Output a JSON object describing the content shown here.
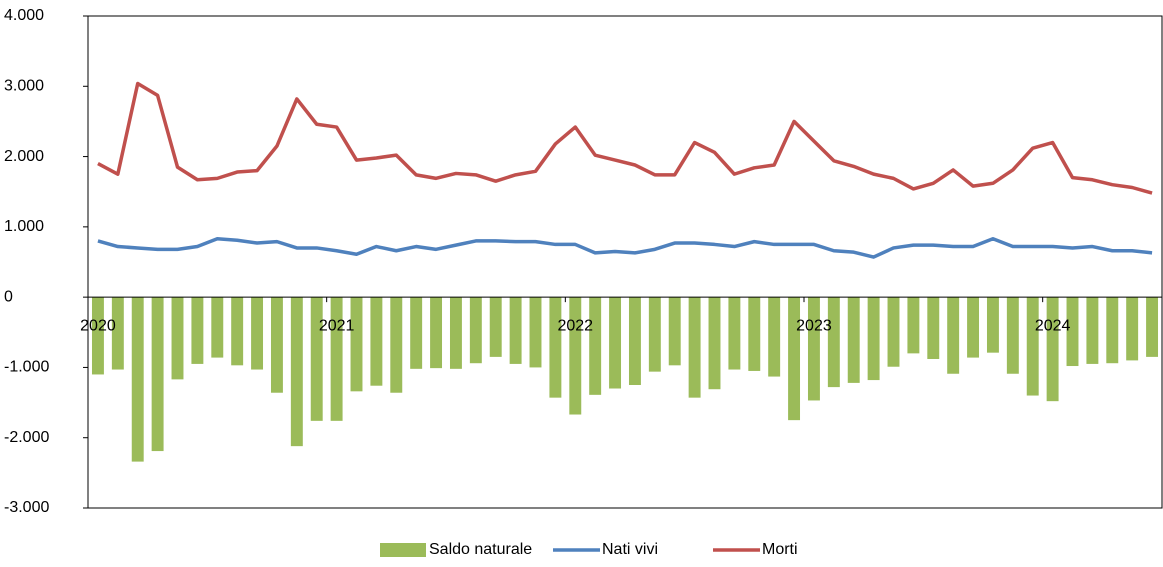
{
  "chart_data": {
    "type": "combo",
    "categories": [
      "2020",
      null,
      null,
      null,
      null,
      null,
      null,
      null,
      null,
      null,
      null,
      null,
      "2021",
      null,
      null,
      null,
      null,
      null,
      null,
      null,
      null,
      null,
      null,
      null,
      "2022",
      null,
      null,
      null,
      null,
      null,
      null,
      null,
      null,
      null,
      null,
      null,
      "2023",
      null,
      null,
      null,
      null,
      null,
      null,
      null,
      null,
      null,
      null,
      null,
      "2024",
      null,
      null,
      null,
      null,
      null
    ],
    "series": [
      {
        "name": "Saldo naturale",
        "type": "bar",
        "color": "#9bbb59",
        "values": [
          -1100,
          -1030,
          -2340,
          -2190,
          -1170,
          -950,
          -860,
          -970,
          -1030,
          -1360,
          -2120,
          -1760,
          -1760,
          -1340,
          -1260,
          -1360,
          -1020,
          -1010,
          -1020,
          -940,
          -850,
          -950,
          -1000,
          -1430,
          -1670,
          -1390,
          -1300,
          -1250,
          -1060,
          -970,
          -1430,
          -1310,
          -1030,
          -1050,
          -1130,
          -1750,
          -1470,
          -1280,
          -1220,
          -1180,
          -990,
          -800,
          -880,
          -1090,
          -860,
          -790,
          -1090,
          -1400,
          -1480,
          -980,
          -950,
          -940,
          -900,
          -850
        ]
      },
      {
        "name": "Nati vivi",
        "type": "line",
        "color": "#4f81bd",
        "values": [
          800,
          720,
          700,
          680,
          680,
          720,
          830,
          810,
          770,
          790,
          700,
          700,
          660,
          610,
          720,
          660,
          720,
          680,
          740,
          800,
          800,
          790,
          790,
          750,
          750,
          630,
          650,
          630,
          680,
          770,
          770,
          750,
          720,
          790,
          750,
          750,
          750,
          660,
          640,
          570,
          700,
          740,
          740,
          720,
          720,
          830,
          720,
          720,
          720,
          700,
          720,
          660,
          660,
          630
        ]
      },
      {
        "name": "Morti",
        "type": "line",
        "color": "#c0504d",
        "values": [
          1900,
          1750,
          3040,
          2870,
          1850,
          1670,
          1690,
          1780,
          1800,
          2150,
          2820,
          2460,
          2420,
          1950,
          1980,
          2020,
          1740,
          1690,
          1760,
          1740,
          1650,
          1740,
          1790,
          2180,
          2420,
          2020,
          1950,
          1880,
          1740,
          1740,
          2200,
          2060,
          1750,
          1840,
          1880,
          2500,
          2220,
          1940,
          1860,
          1750,
          1690,
          1540,
          1620,
          1810,
          1580,
          1620,
          1810,
          2120,
          2200,
          1700,
          1670,
          1600,
          1560,
          1480
        ]
      }
    ],
    "ylim": [
      -3000,
      4000
    ],
    "yticks": [
      {
        "value": -3000,
        "label": "-3.000"
      },
      {
        "value": -2000,
        "label": "-2.000"
      },
      {
        "value": -1000,
        "label": "-1.000"
      },
      0,
      {
        "value": 1000,
        "label": "1.000"
      },
      {
        "value": 2000,
        "label": "2.000"
      },
      {
        "value": 3000,
        "label": "3.000"
      },
      {
        "value": 4000,
        "label": "4.000"
      }
    ],
    "grid": false,
    "legend": "bottom"
  }
}
